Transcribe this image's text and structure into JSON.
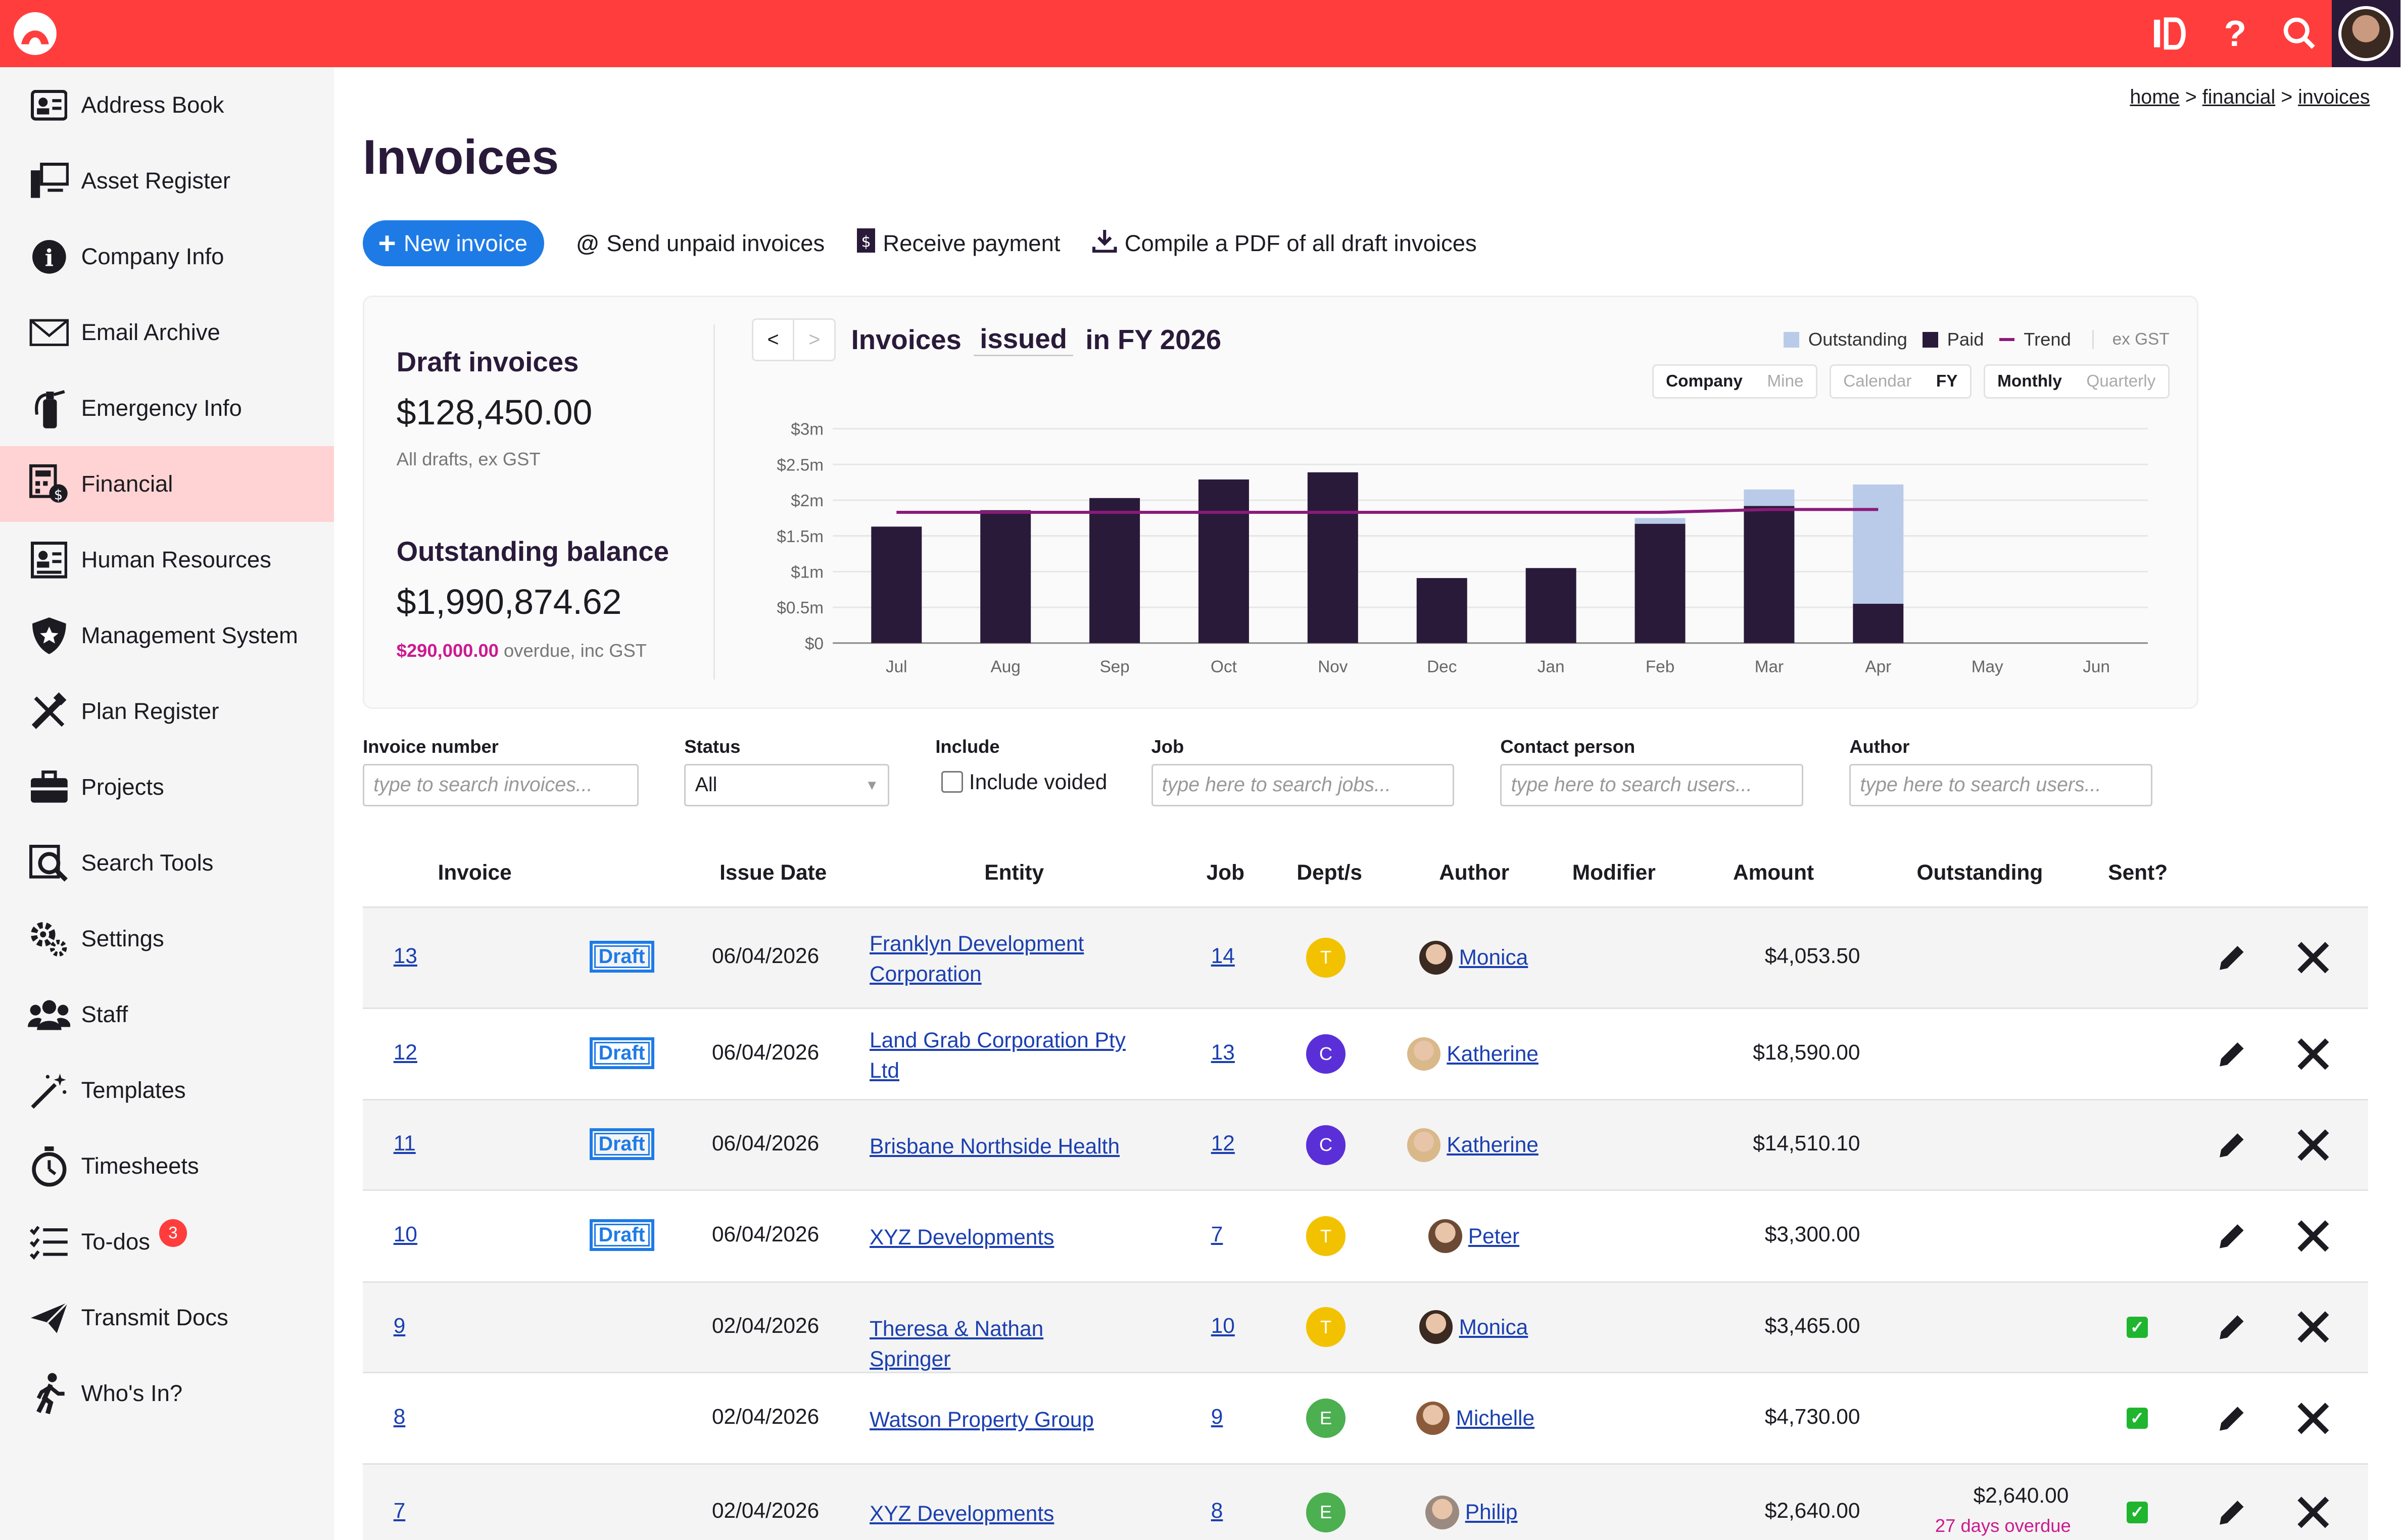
{
  "topbar": {
    "icons": [
      "logo-icon",
      "activity-icon",
      "help-icon",
      "search-icon",
      "user-avatar"
    ],
    "accent": "#ff3d3d"
  },
  "breadcrumb": {
    "home": "home",
    "financial": "financial",
    "invoices": "invoices",
    "sep": ">"
  },
  "sidebar": {
    "items": [
      {
        "label": "Address Book",
        "icon": "address-book-icon"
      },
      {
        "label": "Asset Register",
        "icon": "asset-register-icon"
      },
      {
        "label": "Company Info",
        "icon": "info-icon"
      },
      {
        "label": "Email Archive",
        "icon": "envelope-icon"
      },
      {
        "label": "Emergency Info",
        "icon": "fire-extinguisher-icon"
      },
      {
        "label": "Financial",
        "icon": "calculator-icon",
        "active": true
      },
      {
        "label": "Human Resources",
        "icon": "id-card-icon"
      },
      {
        "label": "Management System",
        "icon": "shield-star-icon"
      },
      {
        "label": "Plan Register",
        "icon": "plan-tools-icon"
      },
      {
        "label": "Projects",
        "icon": "briefcase-icon"
      },
      {
        "label": "Search Tools",
        "icon": "search-doc-icon"
      },
      {
        "label": "Settings",
        "icon": "gears-icon"
      },
      {
        "label": "Staff",
        "icon": "people-icon"
      },
      {
        "label": "Templates",
        "icon": "magic-wand-icon"
      },
      {
        "label": "Timesheets",
        "icon": "stopwatch-icon"
      },
      {
        "label": "To-dos",
        "icon": "checklist-icon",
        "badge": "3"
      },
      {
        "label": "Transmit Docs",
        "icon": "paper-plane-icon"
      },
      {
        "label": "Who's In?",
        "icon": "walking-person-icon"
      }
    ]
  },
  "page": {
    "title": "Invoices"
  },
  "actions": {
    "new_invoice": "New invoice",
    "send_unpaid": "Send unpaid invoices",
    "receive_payment": "Receive payment",
    "compile_pdf": "Compile a PDF of all draft invoices"
  },
  "summary": {
    "draft_label": "Draft invoices",
    "draft_value": "$128,450.00",
    "draft_sub": "All drafts, ex GST",
    "outstanding_label": "Outstanding balance",
    "outstanding_value": "$1,990,874.62",
    "overdue_value": "$290,000.00",
    "overdue_sub": " overdue, inc GST"
  },
  "chart_header": {
    "prev": "<",
    "next": ">",
    "title_prefix": "Invoices",
    "title_mode": "issued",
    "title_suffix": "in FY 2026",
    "legend_outstanding": "Outstanding",
    "legend_paid": "Paid",
    "legend_trend": "Trend",
    "ex_gst": "ex GST",
    "toggle_company": "Company",
    "toggle_mine": "Mine",
    "toggle_calendar": "Calendar",
    "toggle_fy": "FY",
    "toggle_monthly": "Monthly",
    "toggle_quarterly": "Quarterly"
  },
  "chart_data": {
    "type": "bar",
    "stacked": true,
    "categories": [
      "Jul",
      "Aug",
      "Sep",
      "Oct",
      "Nov",
      "Dec",
      "Jan",
      "Feb",
      "Mar",
      "Apr",
      "May",
      "Jun"
    ],
    "series": [
      {
        "name": "Paid",
        "color": "#2a1a3a",
        "values": [
          1.63,
          1.86,
          2.03,
          2.29,
          2.39,
          0.91,
          1.05,
          1.67,
          1.92,
          0.55,
          0,
          0
        ]
      },
      {
        "name": "Outstanding",
        "color": "#b9cbe8",
        "values": [
          0,
          0,
          0,
          0,
          0,
          0,
          0,
          0.08,
          0.23,
          1.67,
          0,
          0
        ]
      }
    ],
    "trend": {
      "name": "Trend",
      "color": "#8b1a7a",
      "values": [
        1.83,
        1.83,
        1.83,
        1.83,
        1.83,
        1.83,
        1.83,
        1.83,
        1.87,
        1.87
      ]
    },
    "y_ticks": [
      "$0",
      "$0.5m",
      "$1m",
      "$1.5m",
      "$2m",
      "$2.5m",
      "$3m"
    ],
    "ylim": [
      0,
      3
    ],
    "y_unit": "$m",
    "grid": true,
    "legend_position": "top-right"
  },
  "filters": {
    "invoice_number": {
      "label": "Invoice number",
      "placeholder": "type to search invoices..."
    },
    "status": {
      "label": "Status",
      "value": "All"
    },
    "include": {
      "label": "Include",
      "checkbox_label": "Include voided"
    },
    "job": {
      "label": "Job",
      "placeholder": "type here to search jobs..."
    },
    "contact": {
      "label": "Contact person",
      "placeholder": "type here to search users..."
    },
    "author": {
      "label": "Author",
      "placeholder": "type here to search users..."
    }
  },
  "table": {
    "headers": {
      "invoice": "Invoice",
      "issue_date": "Issue Date",
      "entity": "Entity",
      "job": "Job",
      "depts": "Dept/s",
      "author": "Author",
      "modifier": "Modifier",
      "amount": "Amount",
      "outstanding": "Outstanding",
      "sent": "Sent?"
    },
    "rows": [
      {
        "num": "13",
        "draft": "Draft",
        "date": "06/04/2026",
        "entity": "Franklyn Development Corporation",
        "job": "14",
        "dept": "T",
        "dept_color": "#f2c200",
        "author": "Monica",
        "amount": "$4,053.50",
        "outstanding": "",
        "overdue": "",
        "sent": false
      },
      {
        "num": "12",
        "draft": "Draft",
        "date": "06/04/2026",
        "entity": "Land Grab Corporation Pty Ltd",
        "job": "13",
        "dept": "C",
        "dept_color": "#5a2fd8",
        "author": "Katherine",
        "amount": "$18,590.00",
        "outstanding": "",
        "overdue": "",
        "sent": false
      },
      {
        "num": "11",
        "draft": "Draft",
        "date": "06/04/2026",
        "entity": "Brisbane Northside Health",
        "job": "12",
        "dept": "C",
        "dept_color": "#5a2fd8",
        "author": "Katherine",
        "amount": "$14,510.10",
        "outstanding": "",
        "overdue": "",
        "sent": false
      },
      {
        "num": "10",
        "draft": "Draft",
        "date": "06/04/2026",
        "entity": "XYZ Developments",
        "job": "7",
        "dept": "T",
        "dept_color": "#f2c200",
        "author": "Peter",
        "amount": "$3,300.00",
        "outstanding": "",
        "overdue": "",
        "sent": false
      },
      {
        "num": "9",
        "draft": "",
        "date": "02/04/2026",
        "entity": "Theresa & Nathan Springer",
        "job": "10",
        "dept": "T",
        "dept_color": "#f2c200",
        "author": "Monica",
        "amount": "$3,465.00",
        "outstanding": "",
        "overdue": "",
        "sent": true
      },
      {
        "num": "8",
        "draft": "",
        "date": "02/04/2026",
        "entity": "Watson Property Group",
        "job": "9",
        "dept": "E",
        "dept_color": "#4caf50",
        "author": "Michelle",
        "amount": "$4,730.00",
        "outstanding": "",
        "overdue": "",
        "sent": true
      },
      {
        "num": "7",
        "draft": "",
        "date": "02/04/2026",
        "entity": "XYZ Developments",
        "job": "8",
        "dept": "E",
        "dept_color": "#4caf50",
        "author": "Philip",
        "amount": "$2,640.00",
        "outstanding": "$2,640.00",
        "overdue": "27 days overdue",
        "sent": true
      }
    ]
  }
}
